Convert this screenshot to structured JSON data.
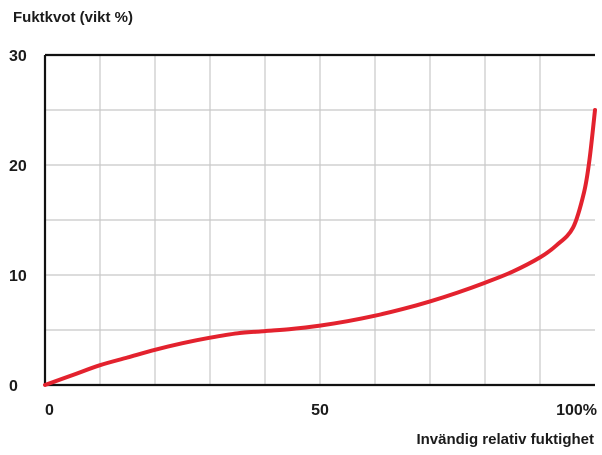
{
  "chart_data": {
    "type": "line",
    "ylabel": "Fuktkvot (vikt %)",
    "xlabel": "Invändig relativ fuktighet",
    "xlim": [
      0,
      100
    ],
    "ylim": [
      0,
      30
    ],
    "x_ticks": [
      {
        "value": 0,
        "label": "0"
      },
      {
        "value": 50,
        "label": "50"
      },
      {
        "value": 100,
        "label": "100%"
      }
    ],
    "y_ticks": [
      {
        "value": 0,
        "label": "0"
      },
      {
        "value": 10,
        "label": "10"
      },
      {
        "value": 20,
        "label": "20"
      },
      {
        "value": 30,
        "label": "30"
      }
    ],
    "grid": true,
    "grid_x_step": 10,
    "grid_y_step": 5,
    "series": [
      {
        "color": "#e3222e",
        "x": [
          0,
          5,
          10,
          15,
          20,
          25,
          30,
          35,
          40,
          45,
          50,
          55,
          60,
          65,
          70,
          75,
          80,
          85,
          90,
          93,
          96,
          98,
          99,
          100
        ],
        "y": [
          0,
          0.9,
          1.8,
          2.5,
          3.2,
          3.8,
          4.3,
          4.7,
          4.9,
          5.1,
          5.4,
          5.8,
          6.3,
          6.9,
          7.6,
          8.4,
          9.3,
          10.3,
          11.6,
          12.7,
          14.3,
          17.5,
          20.5,
          25
        ]
      }
    ]
  }
}
